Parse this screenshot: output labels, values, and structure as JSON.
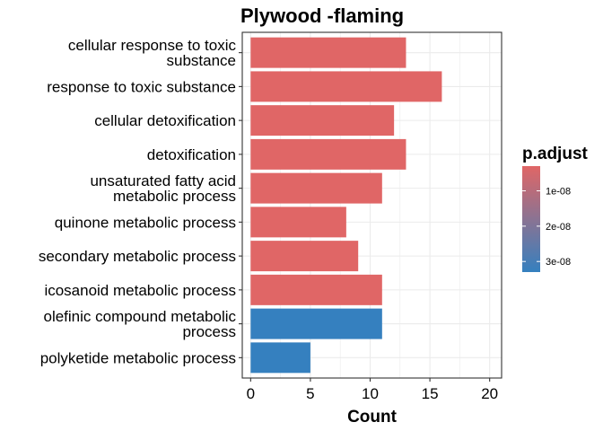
{
  "chart_data": {
    "type": "bar",
    "orientation": "horizontal",
    "title": "Plywood -flaming",
    "xlabel": "Count",
    "ylabel": "",
    "xlim": [
      -0.7,
      21.0
    ],
    "x_ticks": [
      0,
      5,
      10,
      15,
      20
    ],
    "grid": true,
    "legend_position": "right",
    "categories": [
      [
        "cellular response to toxic",
        "substance"
      ],
      [
        "response to toxic substance"
      ],
      [
        "cellular detoxification"
      ],
      [
        "detoxification"
      ],
      [
        "unsaturated fatty acid",
        "metabolic process"
      ],
      [
        "quinone metabolic process"
      ],
      [
        "secondary metabolic process"
      ],
      [
        "icosanoid metabolic process"
      ],
      [
        "olefinic compound metabolic",
        "process"
      ],
      [
        "polyketide metabolic process"
      ]
    ],
    "values": [
      13,
      16,
      12,
      13,
      11,
      8,
      9,
      11,
      11,
      5
    ],
    "p_adjust": [
      3e-09,
      3e-09,
      3e-09,
      3e-09,
      3e-09,
      3e-09,
      3e-09,
      3e-09,
      3.3e-08,
      3.3e-08
    ],
    "legend": {
      "title": "p.adjust",
      "ticks": [
        1e-08,
        2e-08,
        3e-08
      ],
      "tick_labels": [
        "1e-08",
        "2e-08",
        "3e-08"
      ],
      "range": [
        3e-09,
        3.3e-08
      ],
      "color_low": "#E06666",
      "color_high": "#3580BF"
    },
    "colors": {
      "grid": "#EBEBEB",
      "panel_border": "#333333"
    }
  }
}
